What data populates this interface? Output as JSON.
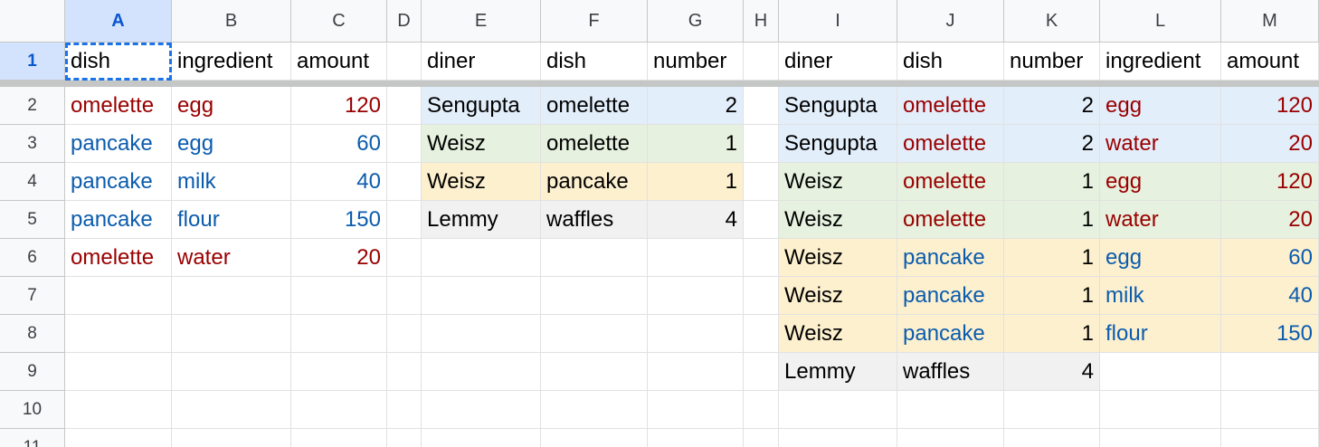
{
  "columns": [
    "A",
    "B",
    "C",
    "D",
    "E",
    "F",
    "G",
    "H",
    "I",
    "J",
    "K",
    "L",
    "M"
  ],
  "selected_column": "A",
  "rows": [
    "1",
    "2",
    "3",
    "4",
    "5",
    "6",
    "7",
    "8",
    "9",
    "10",
    "11"
  ],
  "selected_row": "1",
  "colors": {
    "red_text": "#990000",
    "blue_text": "#0b5cad",
    "band_blue": "#e3eefb",
    "band_green": "#e6f1df",
    "band_yellow": "#fdf0cf",
    "band_gray": "#f1f1f1",
    "selection": "#1a73e8"
  },
  "cells": [
    {
      "ref": "A1",
      "value": "dish"
    },
    {
      "ref": "B1",
      "value": "ingredient"
    },
    {
      "ref": "C1",
      "value": "amount"
    },
    {
      "ref": "E1",
      "value": "diner"
    },
    {
      "ref": "F1",
      "value": "dish"
    },
    {
      "ref": "G1",
      "value": "number"
    },
    {
      "ref": "I1",
      "value": "diner"
    },
    {
      "ref": "J1",
      "value": "dish"
    },
    {
      "ref": "K1",
      "value": "number"
    },
    {
      "ref": "L1",
      "value": "ingredient"
    },
    {
      "ref": "M1",
      "value": "amount"
    },
    {
      "ref": "A2",
      "value": "omelette",
      "color": "red"
    },
    {
      "ref": "B2",
      "value": "egg",
      "color": "red"
    },
    {
      "ref": "C2",
      "value": "120",
      "color": "red",
      "num": true
    },
    {
      "ref": "A3",
      "value": "pancake",
      "color": "blue"
    },
    {
      "ref": "B3",
      "value": "egg",
      "color": "blue"
    },
    {
      "ref": "C3",
      "value": "60",
      "color": "blue",
      "num": true
    },
    {
      "ref": "A4",
      "value": "pancake",
      "color": "blue"
    },
    {
      "ref": "B4",
      "value": "milk",
      "color": "blue"
    },
    {
      "ref": "C4",
      "value": "40",
      "color": "blue",
      "num": true
    },
    {
      "ref": "A5",
      "value": "pancake",
      "color": "blue"
    },
    {
      "ref": "B5",
      "value": "flour",
      "color": "blue"
    },
    {
      "ref": "C5",
      "value": "150",
      "color": "blue",
      "num": true
    },
    {
      "ref": "A6",
      "value": "omelette",
      "color": "red"
    },
    {
      "ref": "B6",
      "value": "water",
      "color": "red"
    },
    {
      "ref": "C6",
      "value": "20",
      "color": "red",
      "num": true
    },
    {
      "ref": "E2",
      "value": "Sengupta",
      "bg": "blue"
    },
    {
      "ref": "F2",
      "value": "omelette",
      "bg": "blue"
    },
    {
      "ref": "G2",
      "value": "2",
      "bg": "blue",
      "num": true
    },
    {
      "ref": "E3",
      "value": "Weisz",
      "bg": "green"
    },
    {
      "ref": "F3",
      "value": "omelette",
      "bg": "green"
    },
    {
      "ref": "G3",
      "value": "1",
      "bg": "green",
      "num": true
    },
    {
      "ref": "E4",
      "value": "Weisz",
      "bg": "yellow"
    },
    {
      "ref": "F4",
      "value": "pancake",
      "bg": "yellow"
    },
    {
      "ref": "G4",
      "value": "1",
      "bg": "yellow",
      "num": true
    },
    {
      "ref": "E5",
      "value": "Lemmy",
      "bg": "gray"
    },
    {
      "ref": "F5",
      "value": "waffles",
      "bg": "gray"
    },
    {
      "ref": "G5",
      "value": "4",
      "bg": "gray",
      "num": true
    },
    {
      "ref": "I2",
      "value": "Sengupta",
      "bg": "blue"
    },
    {
      "ref": "J2",
      "value": "omelette",
      "bg": "blue",
      "color": "red"
    },
    {
      "ref": "K2",
      "value": "2",
      "bg": "blue",
      "num": true
    },
    {
      "ref": "L2",
      "value": "egg",
      "bg": "blue",
      "color": "red"
    },
    {
      "ref": "M2",
      "value": "120",
      "bg": "blue",
      "color": "red",
      "num": true
    },
    {
      "ref": "I3",
      "value": "Sengupta",
      "bg": "blue"
    },
    {
      "ref": "J3",
      "value": "omelette",
      "bg": "blue",
      "color": "red"
    },
    {
      "ref": "K3",
      "value": "2",
      "bg": "blue",
      "num": true
    },
    {
      "ref": "L3",
      "value": "water",
      "bg": "blue",
      "color": "red"
    },
    {
      "ref": "M3",
      "value": "20",
      "bg": "blue",
      "color": "red",
      "num": true
    },
    {
      "ref": "I4",
      "value": "Weisz",
      "bg": "green"
    },
    {
      "ref": "J4",
      "value": "omelette",
      "bg": "green",
      "color": "red"
    },
    {
      "ref": "K4",
      "value": "1",
      "bg": "green",
      "num": true
    },
    {
      "ref": "L4",
      "value": "egg",
      "bg": "green",
      "color": "red"
    },
    {
      "ref": "M4",
      "value": "120",
      "bg": "green",
      "color": "red",
      "num": true
    },
    {
      "ref": "I5",
      "value": "Weisz",
      "bg": "green"
    },
    {
      "ref": "J5",
      "value": "omelette",
      "bg": "green",
      "color": "red"
    },
    {
      "ref": "K5",
      "value": "1",
      "bg": "green",
      "num": true
    },
    {
      "ref": "L5",
      "value": "water",
      "bg": "green",
      "color": "red"
    },
    {
      "ref": "M5",
      "value": "20",
      "bg": "green",
      "color": "red",
      "num": true
    },
    {
      "ref": "I6",
      "value": "Weisz",
      "bg": "yellow"
    },
    {
      "ref": "J6",
      "value": "pancake",
      "bg": "yellow",
      "color": "blue"
    },
    {
      "ref": "K6",
      "value": "1",
      "bg": "yellow",
      "num": true
    },
    {
      "ref": "L6",
      "value": "egg",
      "bg": "yellow",
      "color": "blue"
    },
    {
      "ref": "M6",
      "value": "60",
      "bg": "yellow",
      "color": "blue",
      "num": true
    },
    {
      "ref": "I7",
      "value": "Weisz",
      "bg": "yellow"
    },
    {
      "ref": "J7",
      "value": "pancake",
      "bg": "yellow",
      "color": "blue"
    },
    {
      "ref": "K7",
      "value": "1",
      "bg": "yellow",
      "num": true
    },
    {
      "ref": "L7",
      "value": "milk",
      "bg": "yellow",
      "color": "blue"
    },
    {
      "ref": "M7",
      "value": "40",
      "bg": "yellow",
      "color": "blue",
      "num": true
    },
    {
      "ref": "I8",
      "value": "Weisz",
      "bg": "yellow"
    },
    {
      "ref": "J8",
      "value": "pancake",
      "bg": "yellow",
      "color": "blue"
    },
    {
      "ref": "K8",
      "value": "1",
      "bg": "yellow",
      "num": true
    },
    {
      "ref": "L8",
      "value": "flour",
      "bg": "yellow",
      "color": "blue"
    },
    {
      "ref": "M8",
      "value": "150",
      "bg": "yellow",
      "color": "blue",
      "num": true
    },
    {
      "ref": "I9",
      "value": "Lemmy",
      "bg": "gray"
    },
    {
      "ref": "J9",
      "value": "waffles",
      "bg": "gray"
    },
    {
      "ref": "K9",
      "value": "4",
      "bg": "gray",
      "num": true
    }
  ]
}
